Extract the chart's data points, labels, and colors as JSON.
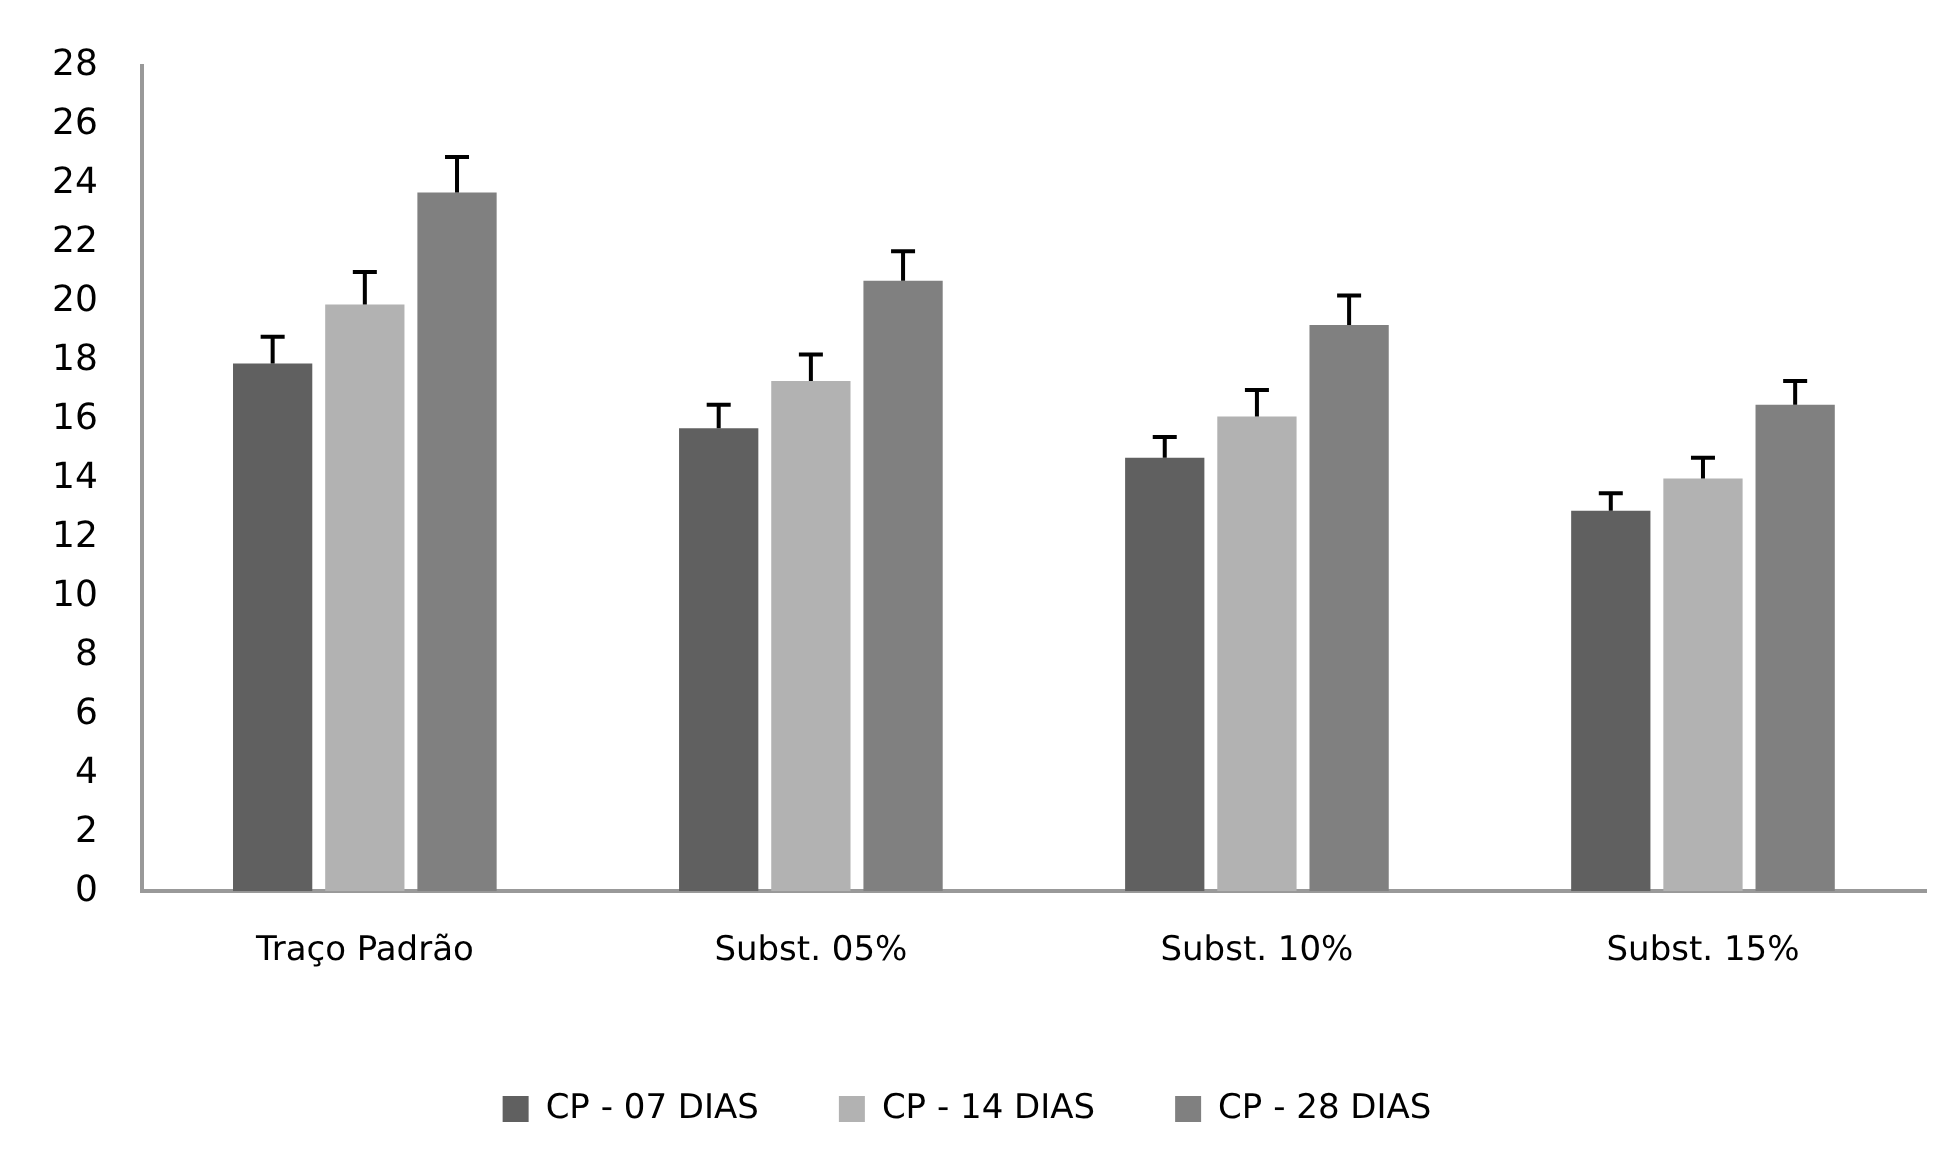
{
  "chart_data": {
    "type": "bar",
    "categories": [
      "Traço Padrão",
      "Subst. 05%",
      "Subst. 10%",
      "Subst. 15%"
    ],
    "series": [
      {
        "name": "CP - 07 DIAS",
        "color": "#606060",
        "values": [
          17.9,
          15.7,
          14.7,
          12.9
        ],
        "errors": [
          [
            17.9,
            18.8
          ],
          [
            15.7,
            16.5
          ],
          [
            14.7,
            15.4
          ],
          [
            12.9,
            13.5
          ]
        ]
      },
      {
        "name": "CP - 14 DIAS",
        "color": "#b2b2b2",
        "values": [
          19.9,
          17.3,
          16.1,
          14.0
        ],
        "errors": [
          [
            19.9,
            21.0
          ],
          [
            17.3,
            18.2
          ],
          [
            16.1,
            17.0
          ],
          [
            14.0,
            14.7
          ]
        ]
      },
      {
        "name": "CP - 28 DIAS",
        "color": "#808080",
        "values": [
          23.7,
          20.7,
          19.2,
          16.5
        ],
        "errors": [
          [
            23.7,
            24.9
          ],
          [
            20.7,
            21.7
          ],
          [
            19.2,
            20.2
          ],
          [
            16.5,
            17.3
          ]
        ]
      }
    ],
    "ylim": [
      0,
      28
    ],
    "yticks": [
      0,
      2,
      4,
      6,
      8,
      10,
      12,
      14,
      16,
      18,
      20,
      22,
      24,
      26,
      28
    ],
    "grid": false,
    "legend": "bottom"
  }
}
